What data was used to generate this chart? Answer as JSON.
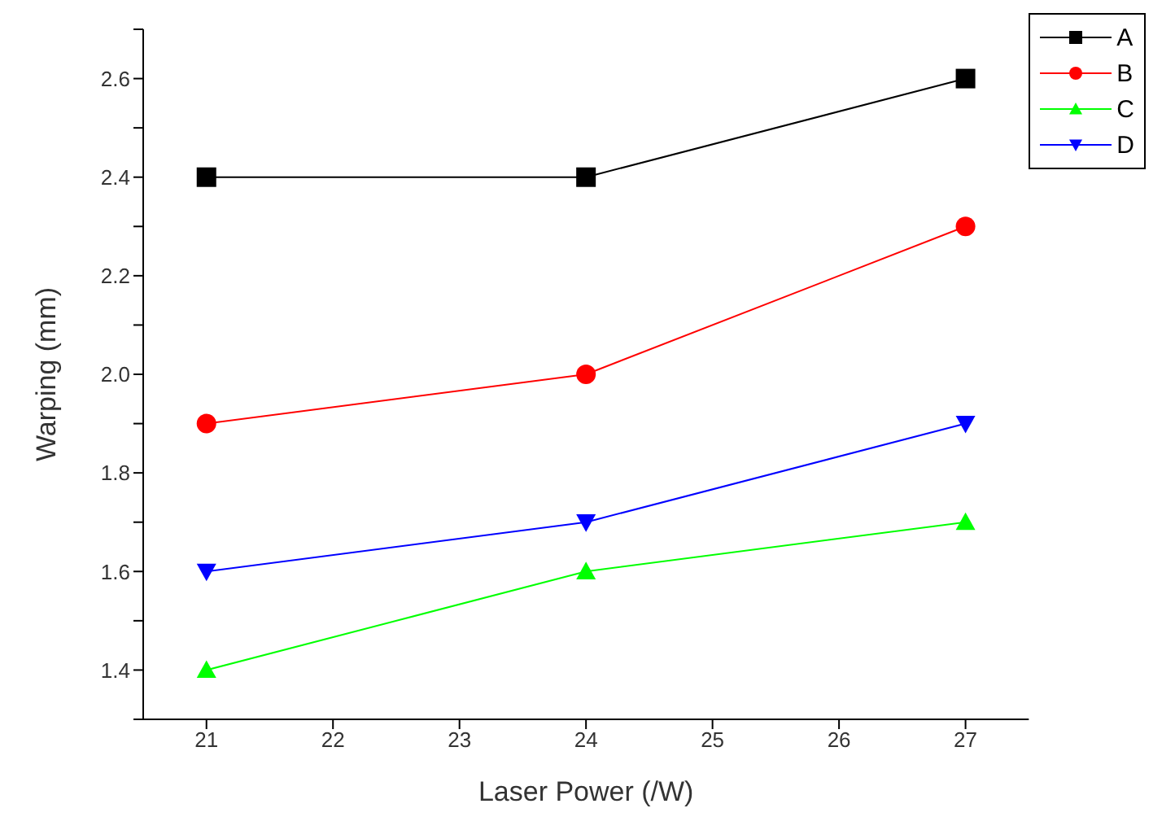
{
  "chart_data": {
    "type": "line",
    "xlabel": "Laser Power (/W)",
    "ylabel": "Warping (mm)",
    "x": [
      21,
      24,
      27
    ],
    "series": [
      {
        "name": "A",
        "color": "#000000",
        "marker": "square",
        "values": [
          2.4,
          2.4,
          2.6
        ]
      },
      {
        "name": "B",
        "color": "#ff0000",
        "marker": "circle",
        "values": [
          1.9,
          2.0,
          2.3
        ]
      },
      {
        "name": "C",
        "color": "#00ff00",
        "marker": "triangle",
        "values": [
          1.4,
          1.6,
          1.7
        ]
      },
      {
        "name": "D",
        "color": "#0000ff",
        "marker": "triangle-down",
        "values": [
          1.6,
          1.7,
          1.9
        ]
      }
    ],
    "xlim": [
      20.5,
      27.5
    ],
    "xticks": [
      21,
      22,
      23,
      24,
      25,
      26,
      27
    ],
    "ylim": [
      1.3,
      2.7
    ],
    "yticks": [
      {
        "value": 1.3,
        "label": null
      },
      1.4,
      {
        "value": 1.5,
        "label": null
      },
      1.6,
      {
        "value": 1.7,
        "label": null
      },
      1.8,
      {
        "value": 1.9,
        "label": null
      },
      {
        "value": 2,
        "label": "2.0"
      },
      {
        "value": 2.1,
        "label": null
      },
      2.2,
      {
        "value": 2.3,
        "label": null
      },
      2.4,
      {
        "value": 2.5,
        "label": null
      },
      2.6,
      {
        "value": 2.7,
        "label": null
      }
    ],
    "grid": false,
    "legend": "top right",
    "line_style": "solid"
  }
}
